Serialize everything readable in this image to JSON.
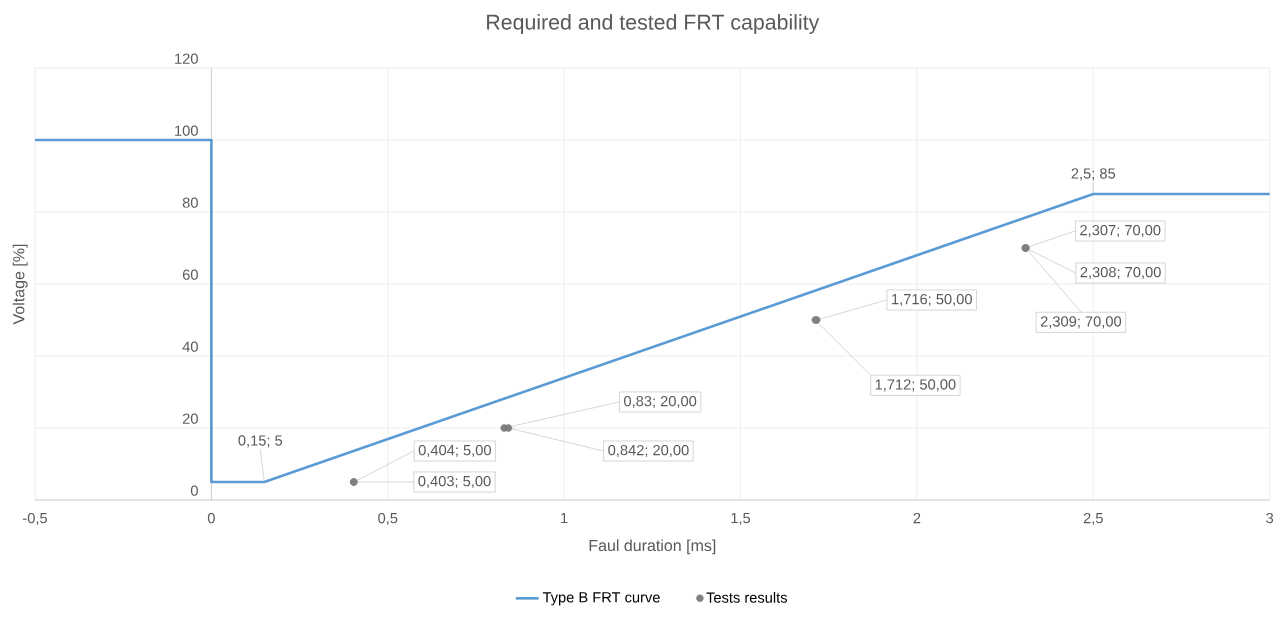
{
  "chart_data": {
    "type": "line",
    "title": "Required and tested FRT capability",
    "xlabel": "Faul duration [ms]",
    "ylabel": "Voltage [%]",
    "series": [
      {
        "name": "Type B FRT curve",
        "color": "#5b9bd5",
        "marker": "none",
        "x": [
          -0.5,
          0,
          0,
          0.15,
          2.5,
          3
        ],
        "values": [
          100,
          100,
          5,
          5,
          85,
          85
        ],
        "value_labels": [
          null,
          null,
          null,
          "0,15; 5",
          "2,5; 85",
          null
        ]
      },
      {
        "name": "Tests results",
        "type": "scatter",
        "color": "#7f7f7f",
        "marker": "circle",
        "x": [
          0.403,
          0.404,
          0.83,
          0.842,
          1.712,
          1.716,
          2.307,
          2.308,
          2.309
        ],
        "values": [
          5,
          5,
          20,
          20,
          50,
          50,
          70,
          70,
          70
        ],
        "value_labels": [
          "0,403; 5,00",
          "0,404; 5,00",
          "0,83; 20,00",
          "0,842; 20,00",
          "1,712; 50,00",
          "1,716; 50,00",
          "2,307; 70,00",
          "2,308; 70,00",
          "2,309; 70,00"
        ]
      }
    ],
    "xlim": [
      -0.5,
      3
    ],
    "ylim": [
      0,
      120
    ],
    "xticks": [
      {
        "value": -0.5,
        "label": "-0,5"
      },
      0,
      {
        "value": 0.5,
        "label": "0,5"
      },
      1,
      {
        "value": 1.5,
        "label": "1,5"
      },
      2,
      {
        "value": 2.5,
        "label": "2,5"
      },
      3
    ],
    "yticks": [
      0,
      20,
      40,
      60,
      80,
      100,
      120
    ],
    "grid": true,
    "legend": "bottom"
  }
}
